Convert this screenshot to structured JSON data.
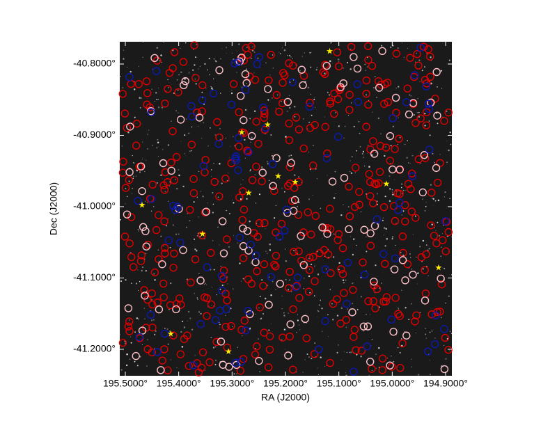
{
  "chart_data": {
    "type": "sky-image",
    "x_label": "RA (J2000)",
    "y_label": "Dec (J2000)",
    "xlim": [
      195.5104,
      194.8883
    ],
    "ylim": [
      -41.2371,
      -40.7688
    ],
    "xticks": [
      {
        "value": 195.5,
        "label": "195.5000°"
      },
      {
        "value": 195.4,
        "label": "195.4000°"
      },
      {
        "value": 195.3,
        "label": "195.3000°"
      },
      {
        "value": 195.2,
        "label": "195.2000°"
      },
      {
        "value": 195.1,
        "label": "195.1000°"
      },
      {
        "value": 195.0,
        "label": "195.0000°"
      },
      {
        "value": 194.9,
        "label": "194.9000°"
      }
    ],
    "yticks": [
      {
        "value": -40.8,
        "label": "-40.8000°"
      },
      {
        "value": -40.9,
        "label": "-40.9000°"
      },
      {
        "value": -41.0,
        "label": "-41.0000°"
      },
      {
        "value": -41.1,
        "label": "-41.1000°"
      },
      {
        "value": -41.2,
        "label": "-41.2000°"
      }
    ]
  }
}
